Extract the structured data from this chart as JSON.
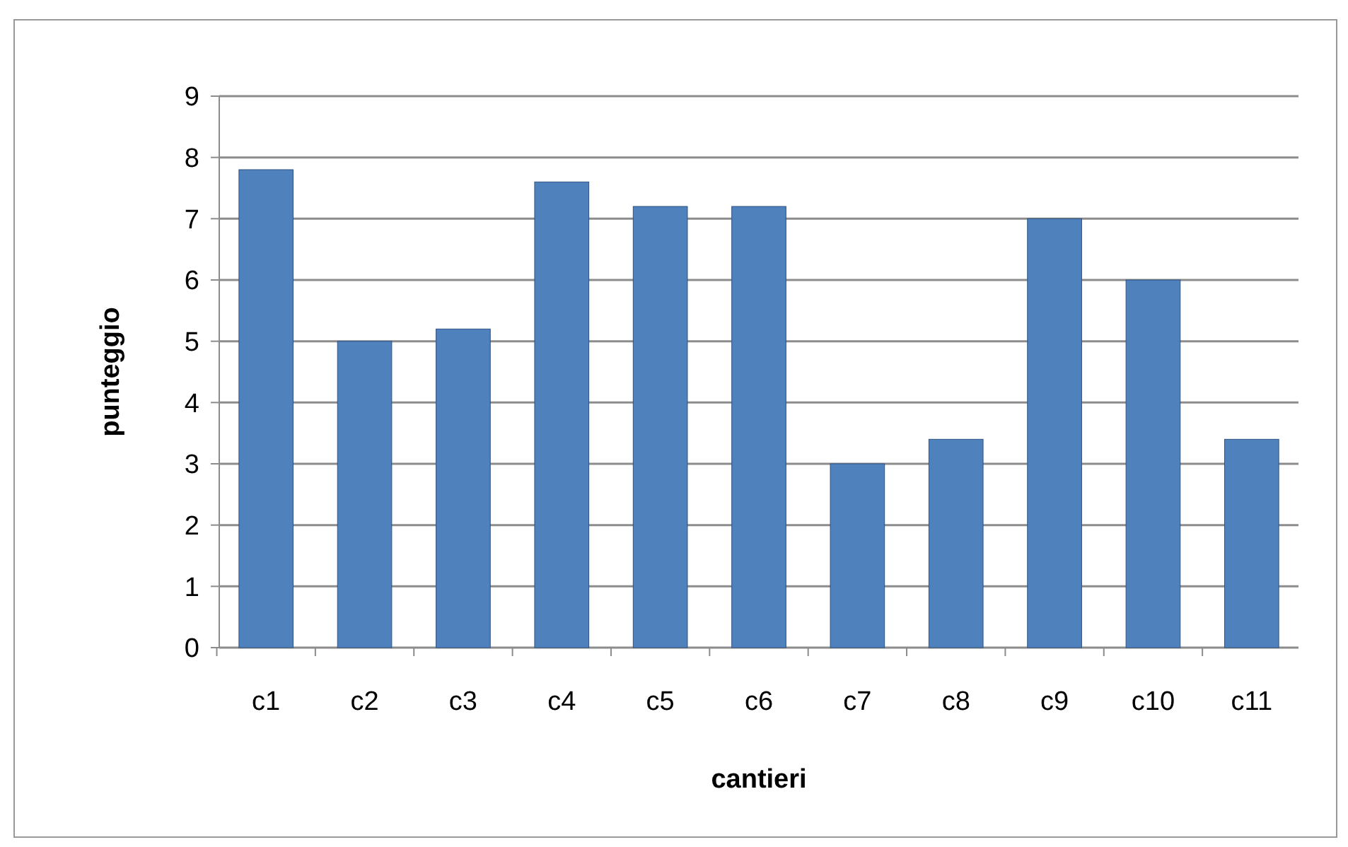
{
  "chart_data": {
    "type": "bar",
    "xlabel": "cantieri",
    "ylabel": "punteggio",
    "categories": [
      "c1",
      "c2",
      "c3",
      "c4",
      "c5",
      "c6",
      "c7",
      "c8",
      "c9",
      "c10",
      "c11"
    ],
    "values": [
      7.8,
      5.0,
      5.2,
      7.6,
      7.2,
      7.2,
      3.0,
      3.4,
      7.0,
      6.0,
      3.4
    ],
    "color": "#4f81bd",
    "ylim": [
      0,
      9
    ],
    "yticks": [
      0,
      1,
      2,
      3,
      4,
      5,
      6,
      7,
      8,
      9
    ],
    "grid": "y"
  }
}
